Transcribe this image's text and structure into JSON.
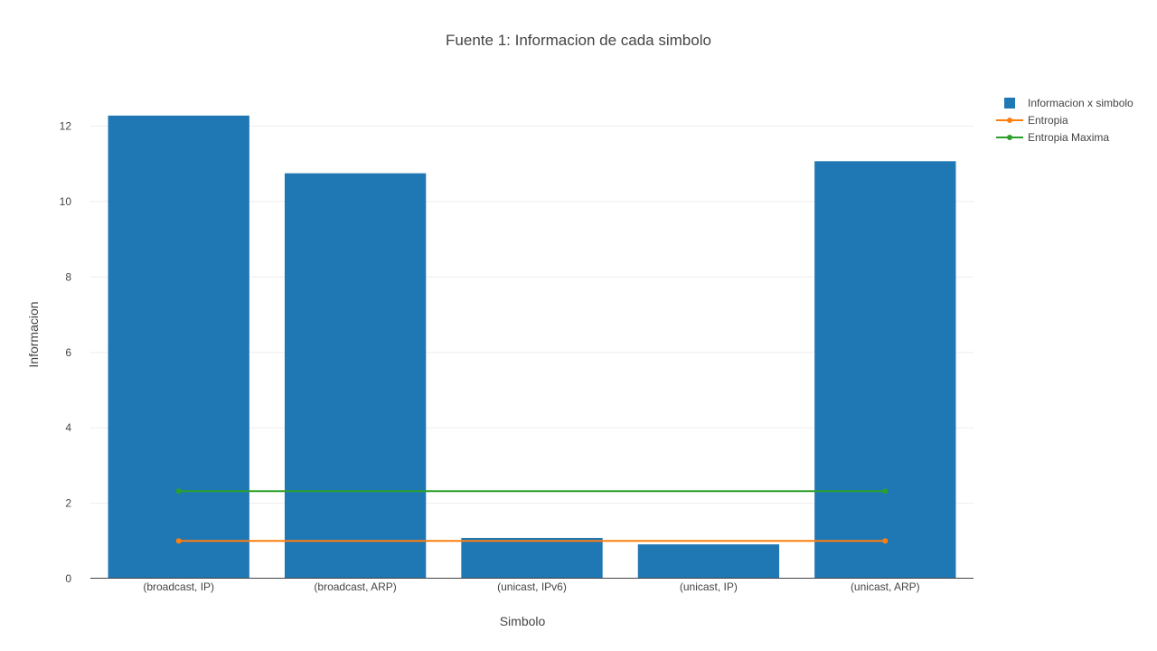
{
  "chart_data": {
    "type": "bar",
    "title": "Fuente 1: Informacion de cada simbolo",
    "xlabel": "Simbolo",
    "ylabel": "Informacion",
    "categories": [
      "(broadcast, IP)",
      "(broadcast, ARP)",
      "(unicast, IPv6)",
      "(unicast, IP)",
      "(unicast, ARP)"
    ],
    "ylim": [
      0,
      12.3
    ],
    "yticks": [
      0,
      2,
      4,
      6,
      8,
      10,
      12
    ],
    "grid": true,
    "legend_position": "top-right",
    "series": [
      {
        "name": "Informacion x simbolo",
        "type": "bar",
        "color": "#1f77b4",
        "values": [
          12.28,
          10.75,
          1.08,
          0.91,
          11.07
        ]
      },
      {
        "name": "Entropia",
        "type": "line",
        "color": "#ff7f0e",
        "values": [
          1.0,
          1.0,
          1.0,
          1.0,
          1.0
        ]
      },
      {
        "name": "Entropia Maxima",
        "type": "line",
        "color": "#2ca02c",
        "values": [
          2.32,
          2.32,
          2.32,
          2.32,
          2.32
        ]
      }
    ]
  }
}
